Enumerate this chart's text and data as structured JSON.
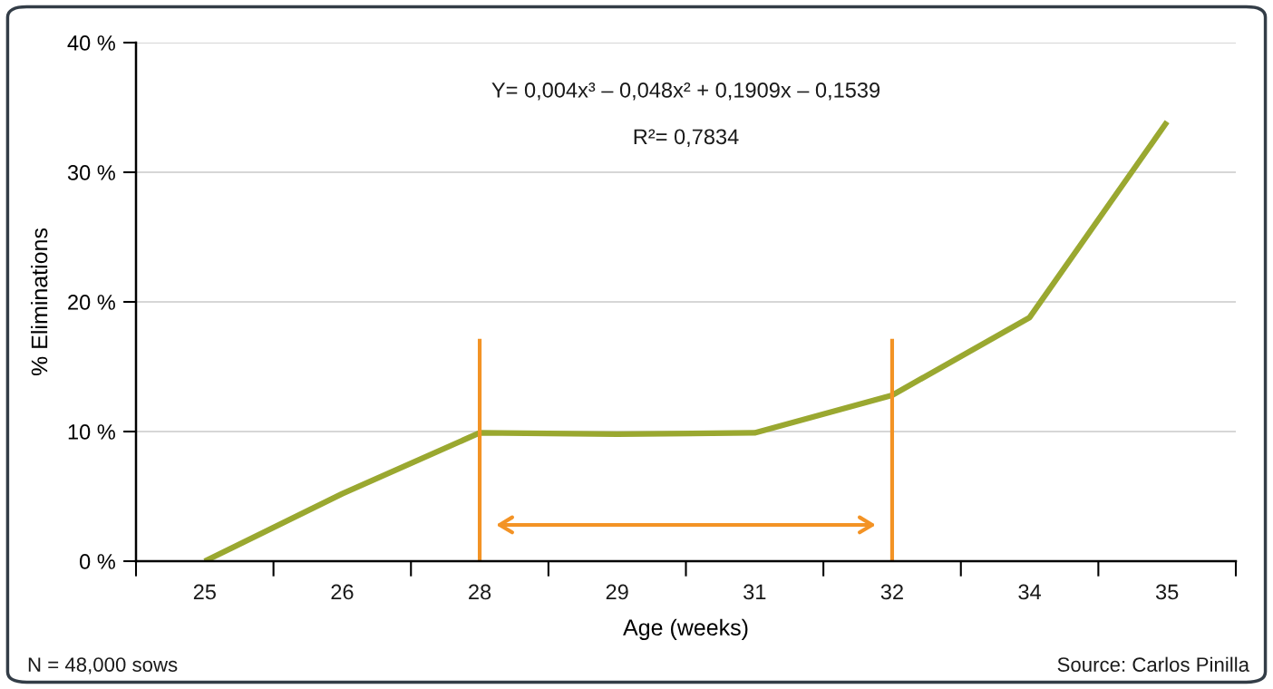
{
  "chart_data": {
    "type": "line",
    "xlabel": "Age (weeks)",
    "ylabel": "% Eliminations",
    "categories": [
      "25",
      "26",
      "28",
      "29",
      "31",
      "32",
      "34",
      "35"
    ],
    "series": [
      {
        "color": "#9aa830",
        "values": [
          0,
          5.2,
          9.9,
          9.8,
          9.9,
          12.8,
          18.8,
          33.9
        ]
      }
    ],
    "ylim": [
      0,
      40
    ],
    "yticks": [
      {
        "value": 0,
        "label": "0 %"
      },
      {
        "value": 10,
        "label": "10 %"
      },
      {
        "value": 20,
        "label": "20 %"
      },
      {
        "value": 30,
        "label": "30 %"
      },
      {
        "value": 40,
        "label": "40 %"
      }
    ],
    "grid": "y",
    "marker": "none",
    "line_style": "solid",
    "ref_lines": [
      {
        "axis": "x",
        "value": "28",
        "color": "#f39325"
      },
      {
        "axis": "x",
        "value": "32",
        "color": "#f39325"
      }
    ],
    "annotations": [
      "Y= 0,004x³ – 0,048x² + 0,1909x – 0,1539",
      "R²= 0,7834",
      "N = 48,000 sows",
      "Source: Carlos Pinilla"
    ]
  }
}
